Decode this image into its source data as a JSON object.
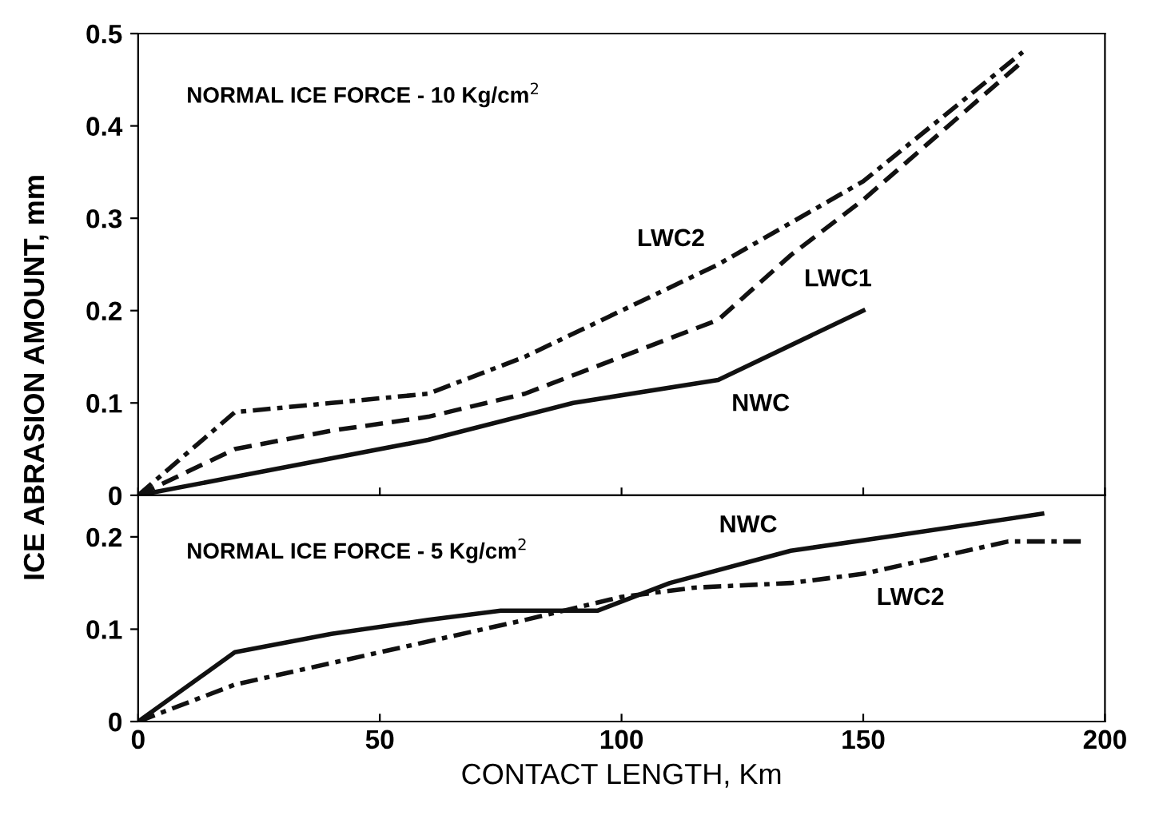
{
  "chart_data": [
    {
      "type": "line",
      "ylabel": "ICE ABRASION AMOUNT, mm",
      "xlim": [
        0,
        200
      ],
      "ylim": [
        0,
        0.5
      ],
      "xticks": [
        {
          "value": 0,
          "label": null
        },
        {
          "value": 50,
          "label": null
        },
        {
          "value": 100,
          "label": null
        },
        {
          "value": 150,
          "label": null
        },
        {
          "value": 200,
          "label": null
        }
      ],
      "yticks": [
        0,
        0.1,
        0.2,
        0.3,
        0.4,
        0.5
      ],
      "tick_labels": "y",
      "grid": false,
      "legend": false,
      "marker": "none",
      "annotations": [
        "NORMAL ICE FORCE - 10 Kg/cm$^{2}$"
      ],
      "series": [
        {
          "name": "NWC",
          "color": "#111111",
          "line_style": "solid",
          "x": [
            0,
            20,
            60,
            90,
            120,
            150
          ],
          "values": [
            0,
            0.02,
            0.06,
            0.1,
            0.125,
            0.2
          ]
        },
        {
          "name": "LWC1",
          "color": "#111111",
          "line_style": "dashed",
          "x": [
            0,
            20,
            40,
            60,
            80,
            100,
            120,
            135,
            150,
            183
          ],
          "values": [
            0,
            0.05,
            0.07,
            0.085,
            0.11,
            0.15,
            0.19,
            0.26,
            0.32,
            0.47
          ]
        },
        {
          "name": "LWC2",
          "color": "#111111",
          "line_style": "dashdot",
          "x": [
            0,
            20,
            40,
            60,
            80,
            100,
            120,
            150,
            183
          ],
          "values": [
            0,
            0.09,
            0.1,
            0.11,
            0.15,
            0.2,
            0.25,
            0.34,
            0.48
          ]
        }
      ]
    },
    {
      "type": "line",
      "xlabel": "CONTACT LENGTH, Km",
      "xlim": [
        0,
        200
      ],
      "ylim": [
        0,
        0.245
      ],
      "xticks": [
        0,
        50,
        100,
        150,
        200
      ],
      "yticks": [
        0,
        0.1,
        0.2
      ],
      "grid": false,
      "legend": false,
      "marker": "none",
      "annotations": [
        "NORMAL ICE FORCE - 5 Kg/cm$^{2}$"
      ],
      "series": [
        {
          "name": "NWC",
          "color": "#111111",
          "line_style": "solid",
          "x": [
            0,
            20,
            40,
            60,
            75,
            95,
            110,
            135,
            155,
            187
          ],
          "values": [
            0,
            0.075,
            0.095,
            0.11,
            0.12,
            0.12,
            0.15,
            0.185,
            0.2,
            0.225
          ]
        },
        {
          "name": "LWC2",
          "color": "#111111",
          "line_style": "dashdot",
          "x": [
            0,
            20,
            50,
            80,
            100,
            115,
            135,
            150,
            180,
            195
          ],
          "values": [
            0,
            0.04,
            0.075,
            0.11,
            0.135,
            0.145,
            0.15,
            0.16,
            0.195,
            0.195
          ]
        }
      ]
    }
  ]
}
